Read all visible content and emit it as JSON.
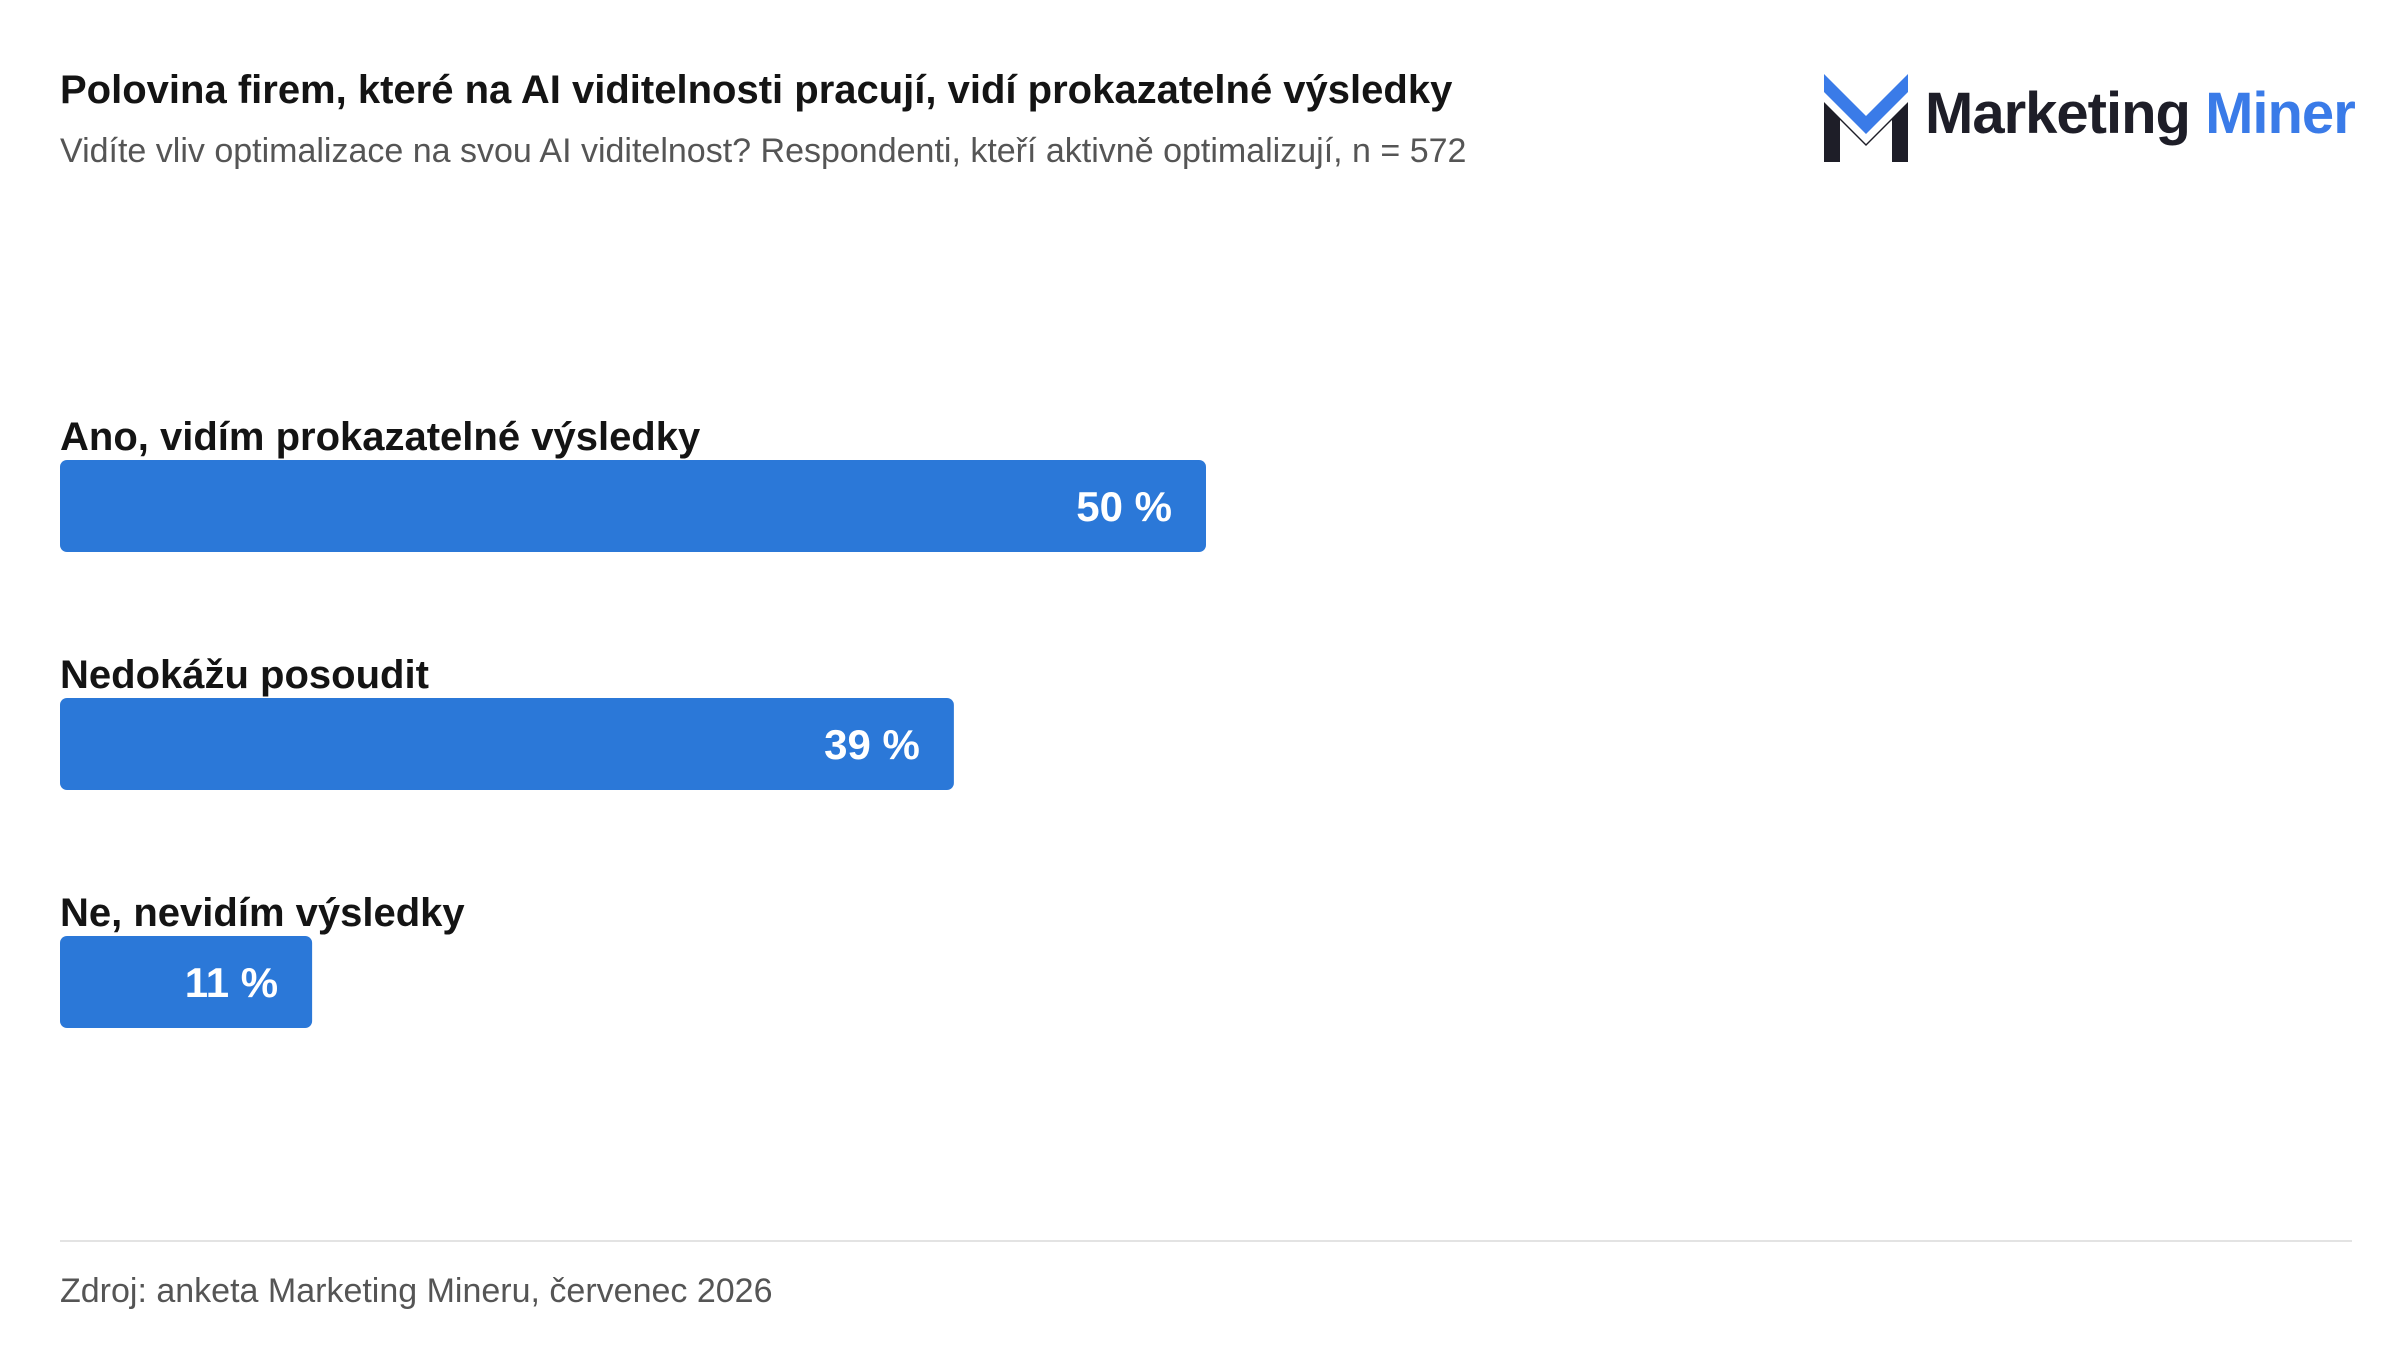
{
  "title": "Polovina firem, které na AI viditelnosti pracují, vidí prokazatelné výsledky",
  "subtitle": "Vidíte vliv optimalizace na svou AI viditelnost? Respondenti, kteří aktivně optimalizují, n = 572",
  "logo": {
    "word1": "Marketing",
    "word2": "Miner",
    "colors": {
      "dark": "#1e1e28",
      "blue": "#3a7be8"
    }
  },
  "source": "Zdroj: anketa Marketing Mineru, červenec 2026",
  "chart_data": {
    "type": "bar",
    "orientation": "horizontal",
    "categories": [
      "Ano, vidím prokazatelné výsledky",
      "Nedokážu posoudit",
      "Ne, nevidím výsledky"
    ],
    "values": [
      50,
      39,
      11
    ],
    "value_labels": [
      "50 %",
      "39 %",
      "11 %"
    ],
    "unit": "%",
    "xlim": [
      0,
      100
    ],
    "grid": false,
    "bar_color": "#2b78d8"
  }
}
